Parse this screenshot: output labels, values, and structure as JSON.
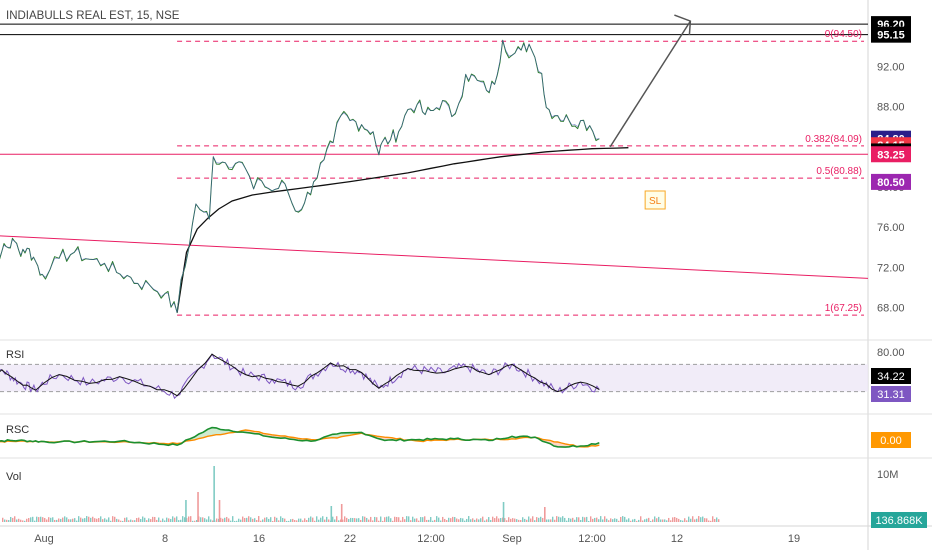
{
  "chart_data": {
    "type": "line",
    "title": "INDIABULLS REAL EST, 15, NSE",
    "x_ticks": [
      "Aug",
      "8",
      "16",
      "22",
      "12:00",
      "Sep",
      "12:00",
      "12",
      "19"
    ],
    "price": {
      "ylim": [
        65.0,
        98.5
      ],
      "tick_labels": [
        "92.00",
        "88.00",
        "84.00",
        "80.00",
        "76.00",
        "72.00",
        "68.00"
      ],
      "tick_values": [
        92,
        88,
        84,
        80,
        76,
        72,
        68
      ],
      "close_series": [
        {
          "d": 0,
          "v": 72.9
        },
        {
          "d": 2,
          "v": 73.6
        },
        {
          "d": 3.5,
          "v": 74.6
        },
        {
          "d": 4,
          "v": 73.7
        },
        {
          "d": 5,
          "v": 73.9
        },
        {
          "d": 6,
          "v": 72.6
        },
        {
          "d": 6.8,
          "v": 71.3
        },
        {
          "d": 7.4,
          "v": 71.8
        },
        {
          "d": 8,
          "v": 72.9
        },
        {
          "d": 9,
          "v": 73.5
        },
        {
          "d": 10,
          "v": 72.8
        },
        {
          "d": 11,
          "v": 72.4
        },
        {
          "d": 11.8,
          "v": 71.5
        },
        {
          "d": 12.5,
          "v": 71.2
        },
        {
          "d": 13.2,
          "v": 70.4
        },
        {
          "d": 14,
          "v": 70.2
        },
        {
          "d": 15,
          "v": 69.4
        },
        {
          "d": 15.9,
          "v": 67.5
        },
        {
          "d": 16.2,
          "v": 70.8
        },
        {
          "d": 16.8,
          "v": 74.1
        },
        {
          "d": 17.3,
          "v": 78.3
        },
        {
          "d": 17.9,
          "v": 77.5
        },
        {
          "d": 18.3,
          "v": 76.8
        },
        {
          "d": 18.6,
          "v": 83.0
        },
        {
          "d": 19.5,
          "v": 82.4
        },
        {
          "d": 20.5,
          "v": 82.5
        },
        {
          "d": 21,
          "v": 81.8
        },
        {
          "d": 21.6,
          "v": 79.8
        },
        {
          "d": 22.2,
          "v": 80.6
        },
        {
          "d": 23,
          "v": 79.6
        },
        {
          "d": 24,
          "v": 80.3
        },
        {
          "d": 24.8,
          "v": 77.6
        },
        {
          "d": 25.5,
          "v": 78.4
        },
        {
          "d": 26.2,
          "v": 80.5
        },
        {
          "d": 27,
          "v": 82.7
        },
        {
          "d": 27.7,
          "v": 84.4
        },
        {
          "d": 28.3,
          "v": 87.1
        },
        {
          "d": 29,
          "v": 86.6
        },
        {
          "d": 30,
          "v": 86.2
        },
        {
          "d": 31,
          "v": 85.5
        },
        {
          "d": 31.5,
          "v": 83.2
        },
        {
          "d": 31.8,
          "v": 84.5
        },
        {
          "d": 32.5,
          "v": 84.7
        },
        {
          "d": 33.2,
          "v": 85.5
        },
        {
          "d": 34,
          "v": 87.7
        },
        {
          "d": 34.8,
          "v": 88.2
        },
        {
          "d": 35.5,
          "v": 87.2
        },
        {
          "d": 36.2,
          "v": 87.6
        },
        {
          "d": 37,
          "v": 88.6
        },
        {
          "d": 37.8,
          "v": 87.0
        },
        {
          "d": 38.4,
          "v": 88.3
        },
        {
          "d": 39,
          "v": 91.2
        },
        {
          "d": 40,
          "v": 90.6
        },
        {
          "d": 40.8,
          "v": 89.6
        },
        {
          "d": 41.5,
          "v": 90.2
        },
        {
          "d": 42.2,
          "v": 94.6
        },
        {
          "d": 43,
          "v": 93.1
        },
        {
          "d": 43.8,
          "v": 93.6
        },
        {
          "d": 44.5,
          "v": 94.2
        },
        {
          "d": 45,
          "v": 92.9
        },
        {
          "d": 45.6,
          "v": 91.3
        },
        {
          "d": 46,
          "v": 87.9
        },
        {
          "d": 47,
          "v": 87.1
        },
        {
          "d": 48,
          "v": 86.6
        },
        {
          "d": 49,
          "v": 86.6
        },
        {
          "d": 49.8,
          "v": 86.1
        },
        {
          "d": 50.6,
          "v": 84.8
        }
      ],
      "vwap_series": [
        {
          "d": 15.9,
          "v": 67.5
        },
        {
          "d": 16.6,
          "v": 73.5
        },
        {
          "d": 17.4,
          "v": 75.8
        },
        {
          "d": 18.2,
          "v": 76.9
        },
        {
          "d": 19,
          "v": 77.8
        },
        {
          "d": 20,
          "v": 78.6
        },
        {
          "d": 21.5,
          "v": 79.2
        },
        {
          "d": 23,
          "v": 79.5
        },
        {
          "d": 26,
          "v": 80.0
        },
        {
          "d": 30,
          "v": 80.7
        },
        {
          "d": 34,
          "v": 81.4
        },
        {
          "d": 38,
          "v": 82.3
        },
        {
          "d": 42,
          "v": 83.0
        },
        {
          "d": 46,
          "v": 83.5
        },
        {
          "d": 50,
          "v": 83.8
        },
        {
          "d": 53,
          "v": 83.9
        }
      ],
      "trendline": {
        "from": {
          "d": 0,
          "v": 75.2
        },
        "to": {
          "d": 62,
          "v": 70.9
        }
      },
      "fib_levels": [
        {
          "label": "0(94.50)",
          "value": 94.5
        },
        {
          "label": "0.382(84.09)",
          "value": 84.09
        },
        {
          "label": "0.5(80.88)",
          "value": 80.88
        },
        {
          "label": "1(67.25)",
          "value": 67.25
        }
      ],
      "horizontal_lines": [
        {
          "value": 96.2,
          "color": "#000000"
        },
        {
          "value": 95.15,
          "color": "#000000"
        },
        {
          "value": 83.25,
          "color": "#e91e63"
        }
      ],
      "target_arrow": {
        "from": {
          "d": 51.5,
          "v": 84.0
        },
        "to": {
          "d": 57.8,
          "v": 96.5
        }
      },
      "price_badges": [
        {
          "text": "96.20",
          "value": 96.2,
          "bg": "#000000",
          "fg": "#ffffff"
        },
        {
          "text": "95.15",
          "value": 95.15,
          "bg": "#000000",
          "fg": "#ffffff"
        },
        {
          "text": "84.80",
          "value": 84.8,
          "bg": "#2a1e8a",
          "fg": "#ffffff"
        },
        {
          "text": "84.15",
          "value": 84.15,
          "bg": "#f23645",
          "fg": "#ffffff"
        },
        {
          "text": "83.53",
          "value": 83.53,
          "bg": "#000000",
          "fg": "#ffffff"
        },
        {
          "text": "83.25",
          "value": 83.25,
          "bg": "#e91e63",
          "fg": "#ffffff"
        },
        {
          "text": "80.50",
          "value": 80.5,
          "bg": "#9c27b0",
          "fg": "#ffffff"
        }
      ],
      "sl_marker": {
        "text": "SL",
        "d": 55.2,
        "v": 78.7
      }
    },
    "rsi": {
      "label": "RSI",
      "tick_label": "80.00",
      "badges": [
        {
          "text": "34.22",
          "bg": "#000000",
          "fg": "#ffffff"
        },
        {
          "text": "31.31",
          "bg": "#7e57c2",
          "fg": "#ffffff"
        }
      ],
      "band": [
        30,
        70
      ],
      "series": [
        {
          "d": 0,
          "v": 48
        },
        {
          "d": 2,
          "v": 62
        },
        {
          "d": 4,
          "v": 44
        },
        {
          "d": 6,
          "v": 32
        },
        {
          "d": 8,
          "v": 55
        },
        {
          "d": 10,
          "v": 42
        },
        {
          "d": 12,
          "v": 52
        },
        {
          "d": 14,
          "v": 38
        },
        {
          "d": 15.9,
          "v": 24
        },
        {
          "d": 18.5,
          "v": 85
        },
        {
          "d": 21,
          "v": 55
        },
        {
          "d": 23,
          "v": 48
        },
        {
          "d": 25,
          "v": 38
        },
        {
          "d": 27.5,
          "v": 72
        },
        {
          "d": 30,
          "v": 58
        },
        {
          "d": 31.5,
          "v": 35
        },
        {
          "d": 34,
          "v": 64
        },
        {
          "d": 37,
          "v": 58
        },
        {
          "d": 39,
          "v": 67
        },
        {
          "d": 41,
          "v": 55
        },
        {
          "d": 43,
          "v": 70
        },
        {
          "d": 45,
          "v": 50
        },
        {
          "d": 47,
          "v": 30
        },
        {
          "d": 49,
          "v": 44
        },
        {
          "d": 50.6,
          "v": 33
        }
      ]
    },
    "rsc": {
      "label": "RSC",
      "badges": [
        {
          "text": "0.00",
          "bg": "#ff9800",
          "fg": "#ffffff"
        }
      ],
      "series_green": [
        {
          "d": 0,
          "v": 0.05
        },
        {
          "d": 4,
          "v": 0.1
        },
        {
          "d": 8,
          "v": 0.0
        },
        {
          "d": 12,
          "v": 0.05
        },
        {
          "d": 15.9,
          "v": -0.2
        },
        {
          "d": 18.5,
          "v": 0.9
        },
        {
          "d": 21,
          "v": 0.6
        },
        {
          "d": 23,
          "v": 0.3
        },
        {
          "d": 26,
          "v": 0.05
        },
        {
          "d": 28,
          "v": 0.5
        },
        {
          "d": 30,
          "v": 0.6
        },
        {
          "d": 32,
          "v": 0.1
        },
        {
          "d": 35,
          "v": 0.15
        },
        {
          "d": 38,
          "v": 0.2
        },
        {
          "d": 41,
          "v": 0.1
        },
        {
          "d": 43,
          "v": 0.35
        },
        {
          "d": 45,
          "v": 0.3
        },
        {
          "d": 47,
          "v": -0.3
        },
        {
          "d": 49,
          "v": -0.25
        },
        {
          "d": 50.6,
          "v": -0.05
        }
      ],
      "series_orange": [
        {
          "d": 0,
          "v": 0.0
        },
        {
          "d": 4,
          "v": 0.05
        },
        {
          "d": 8,
          "v": 0.02
        },
        {
          "d": 12,
          "v": 0.0
        },
        {
          "d": 15.9,
          "v": -0.1
        },
        {
          "d": 18.5,
          "v": 0.4
        },
        {
          "d": 21,
          "v": 0.75
        },
        {
          "d": 23,
          "v": 0.45
        },
        {
          "d": 26,
          "v": 0.15
        },
        {
          "d": 28,
          "v": 0.25
        },
        {
          "d": 30,
          "v": 0.55
        },
        {
          "d": 32,
          "v": 0.3
        },
        {
          "d": 35,
          "v": 0.05
        },
        {
          "d": 38,
          "v": 0.15
        },
        {
          "d": 41,
          "v": 0.15
        },
        {
          "d": 43,
          "v": 0.2
        },
        {
          "d": 45,
          "v": 0.3
        },
        {
          "d": 47,
          "v": 0.0
        },
        {
          "d": 49,
          "v": -0.3
        },
        {
          "d": 50.6,
          "v": -0.2
        }
      ]
    },
    "volume": {
      "label": "Vol",
      "tick_label": "10M",
      "badge": {
        "text": "136.868K",
        "bg": "#26a69a",
        "fg": "#ffffff"
      },
      "spikes": [
        {
          "d": 16.5,
          "v": 2.2
        },
        {
          "d": 17.4,
          "v": 3.0
        },
        {
          "d": 18.6,
          "v": 5.6
        },
        {
          "d": 19.0,
          "v": 2.2
        },
        {
          "d": 27.5,
          "v": 1.6
        },
        {
          "d": 28.3,
          "v": 1.8
        },
        {
          "d": 42.2,
          "v": 2.0
        },
        {
          "d": 45.8,
          "v": 1.5
        }
      ]
    }
  }
}
